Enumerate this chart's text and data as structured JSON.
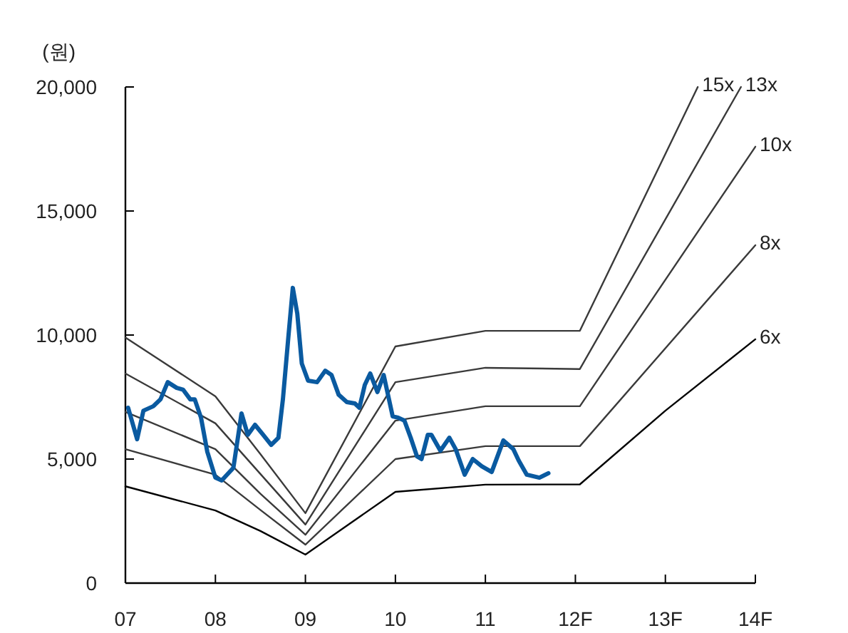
{
  "chart_data": {
    "type": "line",
    "ylabel": "(원)",
    "xlim": [
      7,
      14
    ],
    "ylim": [
      0,
      20000
    ],
    "xticks": [
      {
        "value": 7,
        "label": "07"
      },
      {
        "value": 8,
        "label": "08"
      },
      {
        "value": 9,
        "label": "09"
      },
      10,
      11,
      {
        "value": 12,
        "label": "12F"
      },
      {
        "value": 13,
        "label": "13F"
      },
      {
        "value": 14,
        "label": "14F"
      }
    ],
    "yticks": [
      0,
      {
        "value": 5000,
        "label": "5,000"
      },
      {
        "value": 10000,
        "label": "10,000"
      },
      {
        "value": 15000,
        "label": "15,000"
      },
      {
        "value": 20000,
        "label": "20,000"
      }
    ],
    "series": [
      {
        "name": "15x",
        "color": "#3a3a3a",
        "x": [
          7,
          8,
          8.5,
          9,
          10,
          11,
          12.05,
          13.36
        ],
        "values": [
          9900,
          7530,
          5200,
          2820,
          9540,
          10170,
          10170,
          20000
        ]
      },
      {
        "name": "13x",
        "color": "#3a3a3a",
        "x": [
          7,
          8,
          8.5,
          9,
          10,
          11,
          12.05,
          13.84
        ],
        "values": [
          8450,
          6440,
          4400,
          2360,
          8100,
          8680,
          8630,
          20000
        ]
      },
      {
        "name": "10x",
        "color": "#3a3a3a",
        "x": [
          7,
          8,
          8.5,
          9,
          10,
          11,
          12.05,
          14
        ],
        "values": [
          6900,
          5400,
          3600,
          1950,
          6550,
          7130,
          7130,
          17590
        ]
      },
      {
        "name": "8x",
        "color": "#3a3a3a",
        "x": [
          7,
          8,
          8.5,
          9,
          10,
          11,
          12.05,
          14
        ],
        "values": [
          5400,
          4370,
          2950,
          1550,
          5000,
          5520,
          5520,
          13620
        ]
      },
      {
        "name": "6x",
        "color": "#000000",
        "x": [
          7,
          8,
          8.5,
          9,
          10,
          11,
          12.05,
          13,
          14
        ],
        "values": [
          3900,
          2930,
          2100,
          1150,
          3680,
          3970,
          3980,
          6950,
          9830
        ]
      },
      {
        "color": "#0a5aa0",
        "x": [
          7.03,
          7.13,
          7.2,
          7.31,
          7.39,
          7.47,
          7.57,
          7.64,
          7.72,
          7.77,
          7.84,
          7.91,
          8.0,
          8.07,
          8.2,
          8.29,
          8.36,
          8.44,
          8.53,
          8.62,
          8.7,
          8.75,
          8.81,
          8.86,
          8.91,
          8.96,
          9.03,
          9.13,
          9.22,
          9.29,
          9.37,
          9.46,
          9.55,
          9.6,
          9.66,
          9.72,
          9.8,
          9.87,
          9.97,
          10.03,
          10.1,
          10.17,
          10.24,
          10.29,
          10.36,
          10.4,
          10.5,
          10.6,
          10.67,
          10.77,
          10.86,
          10.96,
          11.07,
          11.2,
          11.31,
          11.37,
          11.46,
          11.6,
          11.7
        ],
        "values": [
          7070,
          5800,
          6950,
          7130,
          7410,
          8100,
          7870,
          7800,
          7410,
          7410,
          6670,
          5290,
          4250,
          4140,
          4650,
          6840,
          5980,
          6380,
          5980,
          5570,
          5860,
          7410,
          9890,
          11900,
          10860,
          8850,
          8160,
          8100,
          8560,
          8390,
          7590,
          7300,
          7240,
          7070,
          7990,
          8450,
          7700,
          8390,
          6720,
          6670,
          6550,
          5860,
          5110,
          5000,
          5980,
          5980,
          5340,
          5860,
          5400,
          4370,
          5000,
          4710,
          4480,
          5750,
          5400,
          4940,
          4370,
          4250,
          4430
        ]
      }
    ]
  }
}
